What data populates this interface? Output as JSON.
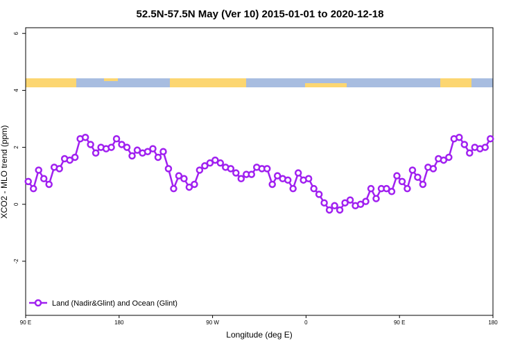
{
  "chart_data": {
    "type": "line",
    "title": "52.5N-57.5N May (Ver 10)   2015-01-01 to 2020-12-18",
    "x_label": "Longitude (deg E)",
    "y_label": "XCO2 - MLO trend (ppm)",
    "xlim": [
      90,
      540
    ],
    "ylim": [
      -3.9,
      6.2
    ],
    "xticks": [
      {
        "value": 90,
        "label": "90 E"
      },
      {
        "value": 180,
        "label": "180"
      },
      {
        "value": 270,
        "label": "90 W"
      },
      {
        "value": 360,
        "label": "0"
      },
      {
        "value": 450,
        "label": "90 E"
      },
      {
        "value": 540,
        "label": "180"
      }
    ],
    "yticks": [
      -2,
      0,
      2,
      4,
      6
    ],
    "legend": "lower left",
    "x": [
      92.5,
      97.5,
      102.5,
      107.5,
      112.5,
      117.5,
      122.5,
      127.5,
      132.5,
      137.5,
      142.5,
      147.5,
      152.5,
      157.5,
      162.5,
      167.5,
      172.5,
      177.5,
      182.5,
      187.5,
      192.5,
      197.5,
      202.5,
      207.5,
      212.5,
      217.5,
      222.5,
      227.5,
      232.5,
      237.5,
      242.5,
      247.5,
      252.5,
      257.5,
      262.5,
      267.5,
      272.5,
      277.5,
      282.5,
      287.5,
      292.5,
      297.5,
      302.5,
      307.5,
      312.5,
      317.5,
      322.5,
      327.5,
      332.5,
      337.5,
      342.5,
      347.5,
      352.5,
      357.5,
      362.5,
      367.5,
      372.5,
      377.5,
      382.5,
      387.5,
      392.5,
      397.5,
      402.5,
      407.5,
      412.5,
      417.5,
      422.5,
      427.5,
      432.5,
      437.5,
      442.5,
      447.5,
      452.5,
      457.5,
      462.5,
      467.5,
      472.5,
      477.5,
      482.5,
      487.5,
      492.5,
      497.5,
      502.5,
      507.5,
      512.5,
      517.5,
      522.5,
      527.5,
      532.5,
      537.5
    ],
    "series": [
      {
        "name": "Land (Nadir&Glint) and Ocean (Glint)",
        "color": "#a020f0",
        "values": [
          0.8,
          0.55,
          1.2,
          0.9,
          0.7,
          1.3,
          1.25,
          1.6,
          1.55,
          1.65,
          2.3,
          2.35,
          2.1,
          1.8,
          2.0,
          1.95,
          2.0,
          2.3,
          2.1,
          2.0,
          1.7,
          1.9,
          1.8,
          1.85,
          1.95,
          1.65,
          1.85,
          1.25,
          0.55,
          1.0,
          0.9,
          0.6,
          0.7,
          1.2,
          1.35,
          1.45,
          1.55,
          1.45,
          1.3,
          1.25,
          1.1,
          0.9,
          1.05,
          1.05,
          1.3,
          1.25,
          1.25,
          0.7,
          1.0,
          0.9,
          0.85,
          0.55,
          1.1,
          0.85,
          0.9,
          0.55,
          0.35,
          0.05,
          -0.2,
          -0.05,
          -0.2,
          0.05,
          0.15,
          -0.05,
          0.0,
          0.1,
          0.55,
          0.2,
          0.55,
          0.55,
          0.45,
          1.0,
          0.8,
          0.55,
          1.2,
          0.95,
          0.7,
          1.3,
          1.25,
          1.6,
          1.55,
          1.65,
          2.3,
          2.35,
          2.1,
          1.8,
          2.0,
          1.95,
          2.0,
          2.3
        ]
      }
    ]
  }
}
